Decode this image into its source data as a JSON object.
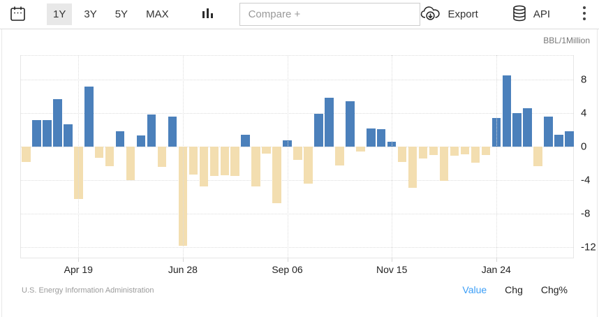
{
  "toolbar": {
    "ranges": [
      {
        "label": "1Y",
        "active": true
      },
      {
        "label": "3Y",
        "active": false
      },
      {
        "label": "5Y",
        "active": false
      },
      {
        "label": "MAX",
        "active": false
      }
    ],
    "compare_placeholder": "Compare +",
    "export_label": "Export",
    "api_label": "API",
    "icons": {
      "calendar": "calendar-outline-with-dots",
      "chart_type": "column-chart-glyph",
      "export": "cloud-download",
      "api": "database-cylinder",
      "menu": "kebab-vertical-dots"
    }
  },
  "chart": {
    "unit_label": "BBL/1Million"
  },
  "chart_data": {
    "type": "bar",
    "title": "",
    "xlabel": "",
    "ylabel": "BBL/1Million",
    "x_tick_labels": [
      "Apr 19",
      "Jun 28",
      "Sep 06",
      "Nov 15",
      "Jan 24"
    ],
    "x_tick_indices": [
      5,
      15,
      25,
      35,
      45
    ],
    "y_ticks": [
      8,
      4,
      0,
      -4,
      -8,
      -12
    ],
    "ylim": [
      -13.3,
      10.9
    ],
    "grid": true,
    "frequency": "weekly",
    "values": [
      -1.8,
      3.2,
      3.2,
      5.7,
      2.7,
      -6.2,
      7.2,
      -1.3,
      -2.3,
      1.8,
      -4.0,
      1.3,
      3.8,
      -2.4,
      3.6,
      -11.8,
      -3.3,
      -4.7,
      -3.5,
      -3.4,
      -3.5,
      1.4,
      -4.7,
      -0.8,
      -6.7,
      0.8,
      -1.6,
      -4.4,
      3.9,
      5.8,
      -2.2,
      5.4,
      -0.6,
      2.2,
      2.1,
      0.6,
      -1.8,
      -4.9,
      -1.4,
      -1.0,
      -4.1,
      -1.1,
      -0.9,
      -1.9,
      -1.0,
      3.4,
      8.5,
      4.0,
      4.6,
      -2.3,
      3.6,
      1.4,
      1.8
    ],
    "positive_color": "#4b80bb",
    "negative_color": "#f3deb0"
  },
  "footer": {
    "source": "U.S. Energy Information Administration",
    "modes": [
      {
        "label": "Value",
        "active": true
      },
      {
        "label": "Chg",
        "active": false
      },
      {
        "label": "Chg%",
        "active": false
      }
    ]
  }
}
